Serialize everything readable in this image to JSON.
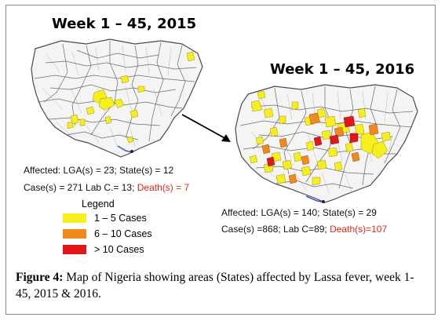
{
  "maps": [
    {
      "title": "Week 1 – 45, 2015",
      "affected_line": "Affected: LGA(s) = 23;  State(s) = 12",
      "cases_line_black": "Case(s) = 271 Lab C.= 13; ",
      "cases_line_red": "Death(s) = 7"
    },
    {
      "title": "Week 1 – 45, 2016",
      "affected_line": "Affected: LGA(s) = 140;  State(s) = 29",
      "cases_line_black": "Case(s) =868; Lab C=89; ",
      "cases_line_red": "Death(s)=107"
    }
  ],
  "legend": {
    "title": "Legend",
    "items": [
      {
        "label": "1 – 5 Cases",
        "color": "#f7ee1e"
      },
      {
        "label": "6 – 10 Cases",
        "color": "#f08a1c"
      },
      {
        "label": "> 10 Cases",
        "color": "#e3161b"
      }
    ]
  },
  "caption": {
    "label": "Figure 4:",
    "text": " Map of Nigeria showing areas (States) affected by Lassa fever, week 1- 45, 2015 & 2016."
  },
  "colors": {
    "map_fill": "#f4f4f4",
    "boundary": "#4a4a4a",
    "water": "#3b5bd6"
  }
}
